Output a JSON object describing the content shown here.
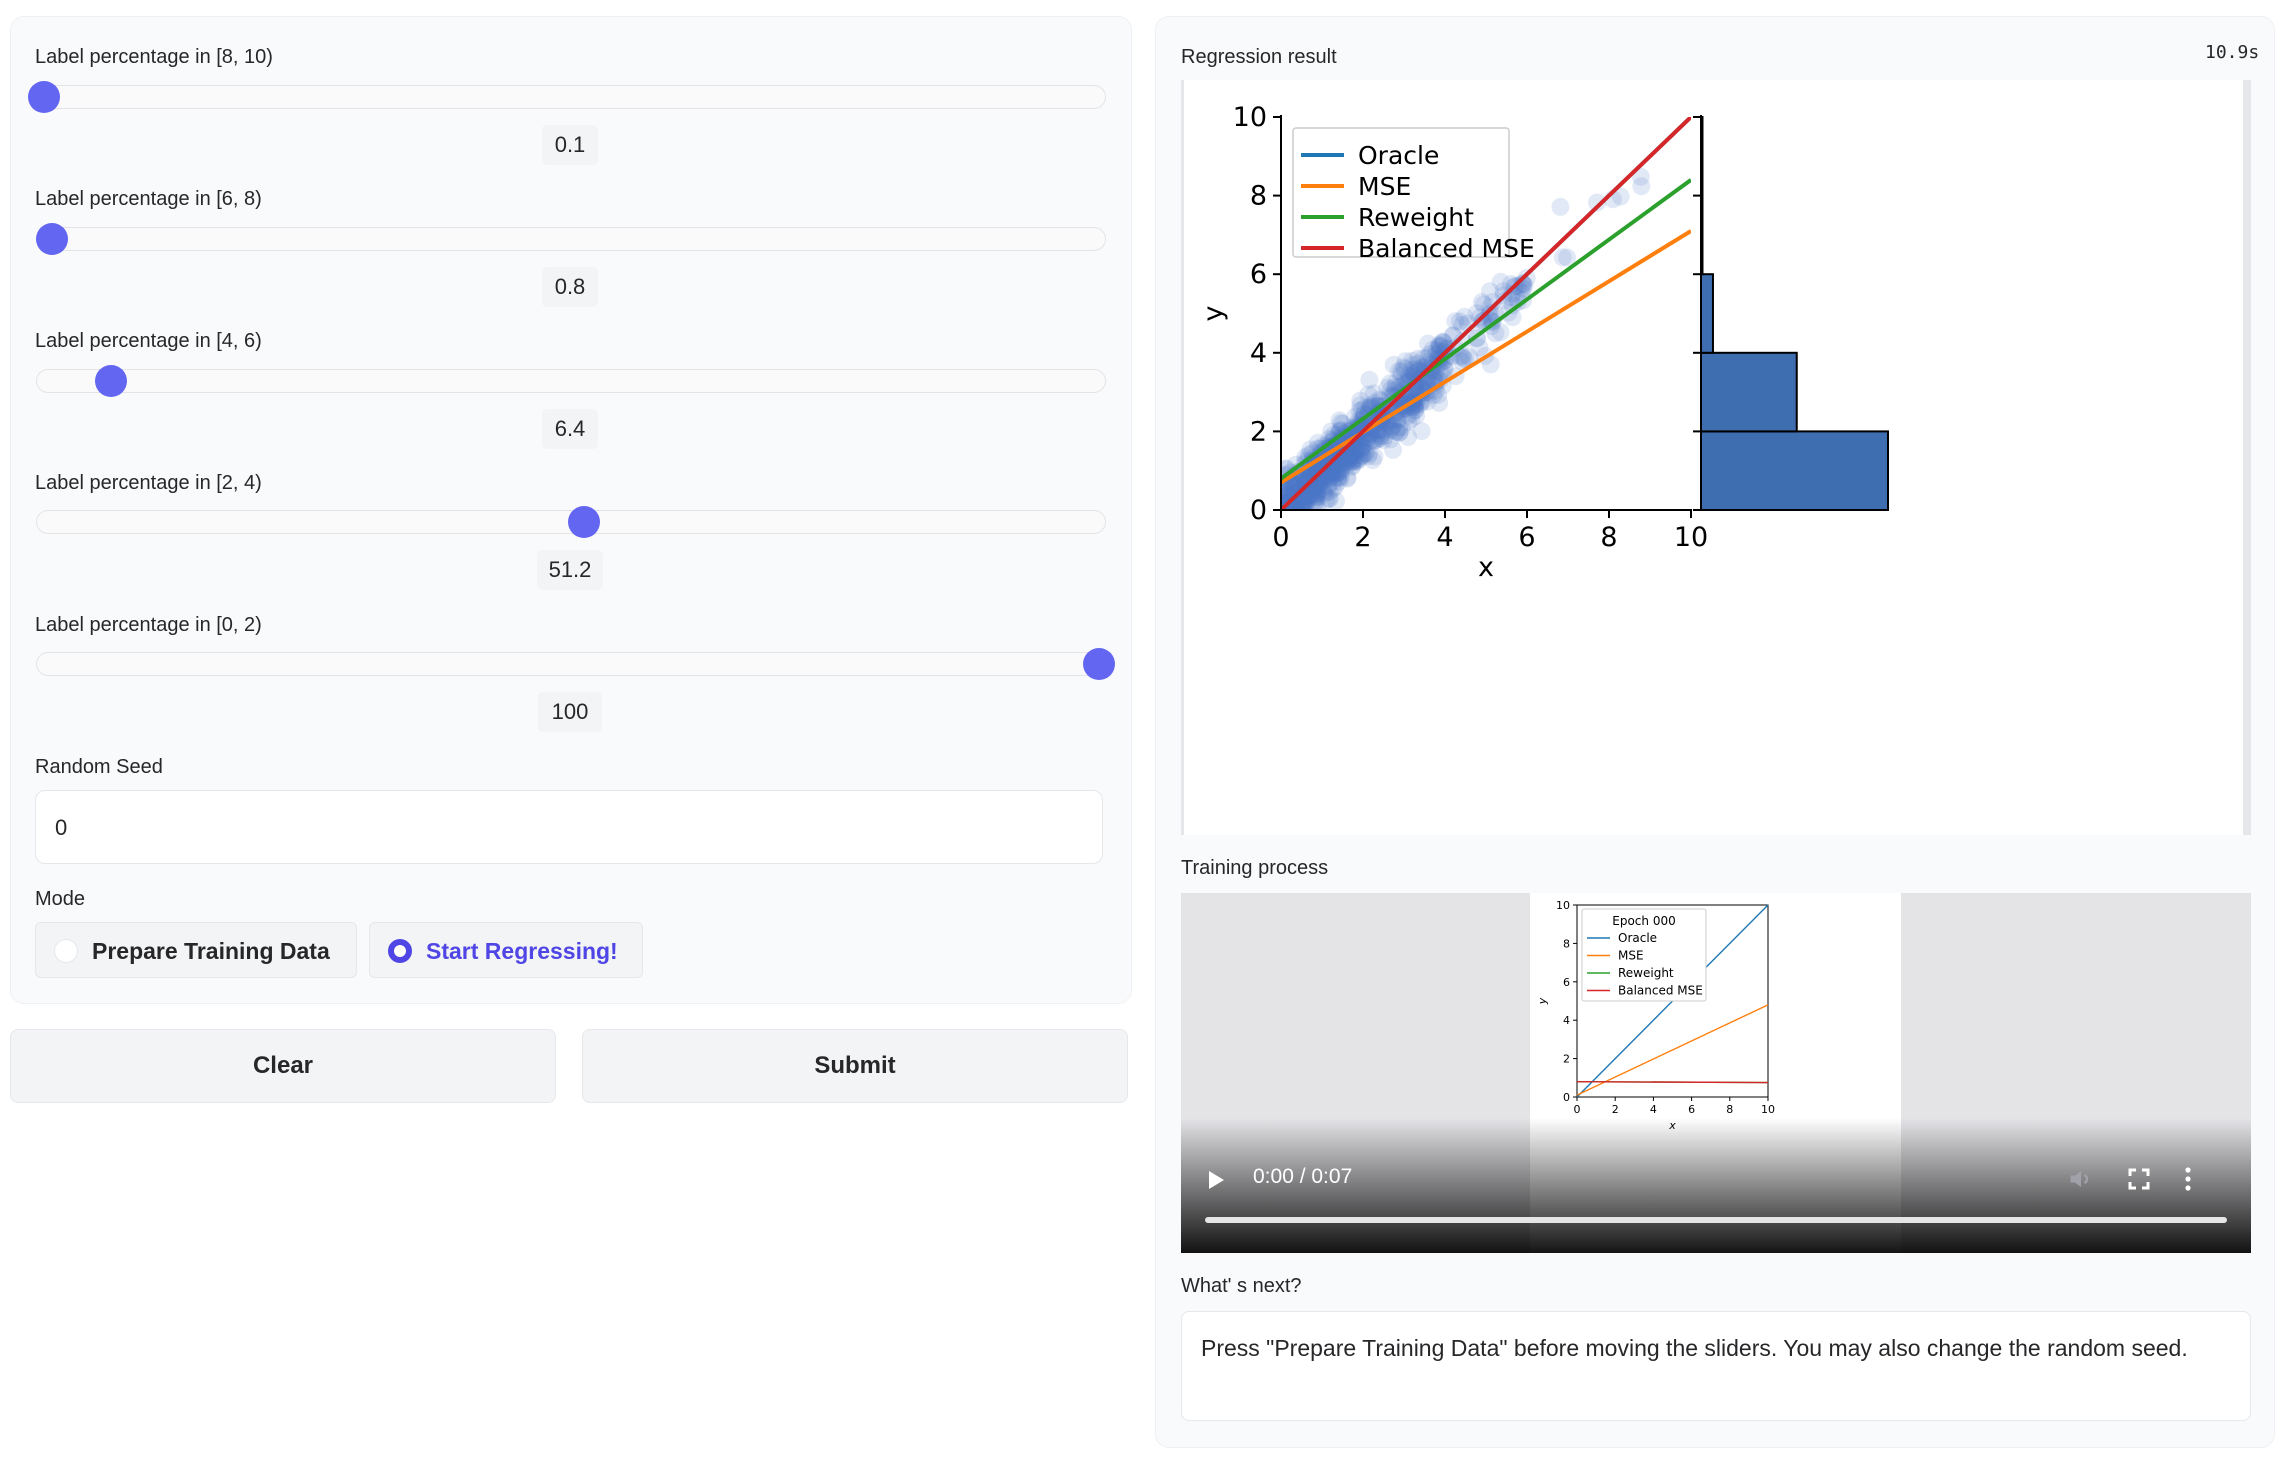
{
  "left": {
    "sliders": [
      {
        "label": "Label percentage in [8, 10)",
        "value": "0.1",
        "frac": 0.001
      },
      {
        "label": "Label percentage in [6, 8)",
        "value": "0.8",
        "frac": 0.008
      },
      {
        "label": "Label percentage in [4, 6)",
        "value": "6.4",
        "frac": 0.064
      },
      {
        "label": "Label percentage in [2, 4)",
        "value": "51.2",
        "frac": 0.512
      },
      {
        "label": "Label percentage in [0, 2)",
        "value": "100",
        "frac": 1.0
      }
    ],
    "seed": {
      "label": "Random Seed",
      "value": "0"
    },
    "mode": {
      "label": "Mode",
      "options": [
        "Prepare Training Data",
        "Start Regressing!"
      ],
      "selected": 1
    },
    "buttons": {
      "clear": "Clear",
      "submit": "Submit"
    }
  },
  "right": {
    "timer": "10.9s",
    "regression_label": "Regression result",
    "training_label": "Training process",
    "video": {
      "time": "0:00 / 0:07"
    },
    "next": {
      "label": "What' s next?",
      "text": "Press \"Prepare Training Data\" before moving the sliders. You may also change the random seed."
    }
  },
  "chart_data": [
    {
      "type": "line",
      "xlabel": "x",
      "ylabel": "y",
      "xlim": [
        0,
        10
      ],
      "ylim": [
        0,
        10
      ],
      "xticks": [
        "0",
        "2",
        "4",
        "6",
        "8",
        "10"
      ],
      "yticks": [
        "0",
        "2",
        "4",
        "6",
        "8",
        "10"
      ],
      "legend_position": "top-left",
      "series": [
        {
          "name": "Oracle",
          "color": "#1f77b4",
          "x": [
            0,
            10
          ],
          "y": [
            0,
            10
          ]
        },
        {
          "name": "MSE",
          "color": "#ff7f0e",
          "x": [
            0,
            10
          ],
          "y": [
            0.7,
            7.1
          ]
        },
        {
          "name": "Reweight",
          "color": "#2ca02c",
          "x": [
            0,
            10
          ],
          "y": [
            0.8,
            8.4
          ]
        },
        {
          "name": "Balanced MSE",
          "color": "#d62728",
          "x": [
            0,
            10
          ],
          "y": [
            0,
            10
          ]
        }
      ],
      "scatter_color": "#4a78c8"
    },
    {
      "type": "bar",
      "orientation": "horizontal",
      "bins": [
        "[0, 2)",
        "[2, 4)",
        "[4, 6)",
        "[6, 8)",
        "[8, 10)"
      ],
      "values": [
        100,
        51.2,
        6.4,
        0.8,
        0.1
      ],
      "color": "#3e6db0"
    },
    {
      "type": "line",
      "title": "Epoch 000",
      "xlabel": "x",
      "ylabel": "y",
      "xlim": [
        0,
        10
      ],
      "ylim": [
        0,
        10
      ],
      "xticks": [
        "0",
        "2",
        "4",
        "6",
        "8",
        "10"
      ],
      "yticks": [
        "0",
        "2",
        "4",
        "6",
        "8",
        "10"
      ],
      "legend_position": "top-left",
      "series": [
        {
          "name": "Oracle",
          "color": "#1f77b4",
          "x": [
            0,
            10
          ],
          "y": [
            0,
            10
          ]
        },
        {
          "name": "MSE",
          "color": "#ff7f0e",
          "x": [
            0,
            10
          ],
          "y": [
            0.1,
            4.8
          ]
        },
        {
          "name": "Reweight",
          "color": "#2ca02c",
          "x": [
            0,
            10
          ],
          "y": [
            0.8,
            0.75
          ]
        },
        {
          "name": "Balanced MSE",
          "color": "#d62728",
          "x": [
            0,
            10
          ],
          "y": [
            0.8,
            0.75
          ]
        }
      ]
    }
  ]
}
